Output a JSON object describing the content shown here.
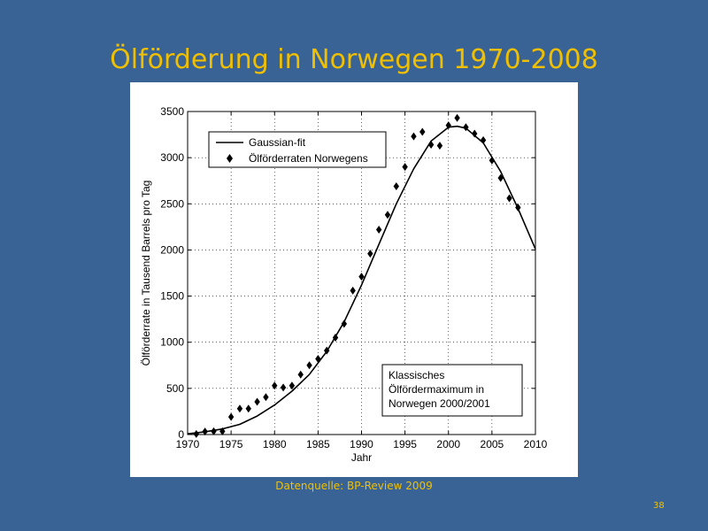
{
  "slide": {
    "title": "Ölförderung in Norwegen 1970-2008",
    "source": "Datenquelle: BP-Review 2009",
    "page_number": "38"
  },
  "chart_data": {
    "type": "scatter",
    "title": "",
    "xlabel": "Jahr",
    "ylabel": "Ölförderrate in Tausend Barrels pro Tag",
    "xlim": [
      1970,
      2010
    ],
    "ylim": [
      0,
      3500
    ],
    "xticks": [
      1970,
      1975,
      1980,
      1985,
      1990,
      1995,
      2000,
      2005,
      2010
    ],
    "yticks": [
      0,
      500,
      1000,
      1500,
      2000,
      2500,
      3000,
      3500
    ],
    "grid": true,
    "legend_position": "top-left",
    "series": [
      {
        "name": "Gaussian-fit",
        "kind": "line",
        "color": "#000000",
        "x": [
          1970,
          1972,
          1974,
          1976,
          1978,
          1980,
          1982,
          1984,
          1986,
          1988,
          1990,
          1992,
          1994,
          1996,
          1998,
          2000,
          2001,
          2002,
          2004,
          2006,
          2008,
          2010
        ],
        "y": [
          8,
          30,
          60,
          110,
          200,
          320,
          470,
          650,
          900,
          1220,
          1620,
          2060,
          2500,
          2880,
          3180,
          3330,
          3340,
          3320,
          3160,
          2850,
          2450,
          2010
        ]
      },
      {
        "name": "Ölförderraten Norwegens",
        "kind": "scatter",
        "marker": "diamond",
        "color": "#000000",
        "x": [
          1971,
          1972,
          1973,
          1974,
          1975,
          1976,
          1977,
          1978,
          1979,
          1980,
          1981,
          1982,
          1983,
          1984,
          1985,
          1986,
          1987,
          1988,
          1989,
          1990,
          1991,
          1992,
          1993,
          1994,
          1995,
          1996,
          1997,
          1998,
          1999,
          2000,
          2001,
          2002,
          2003,
          2004,
          2005,
          2006,
          2007,
          2008
        ],
        "y": [
          6,
          32,
          35,
          35,
          190,
          280,
          280,
          355,
          405,
          530,
          510,
          530,
          650,
          750,
          820,
          910,
          1050,
          1200,
          1560,
          1710,
          1960,
          2220,
          2380,
          2690,
          2900,
          3230,
          3280,
          3140,
          3130,
          3350,
          3430,
          3330,
          3260,
          3190,
          2970,
          2780,
          2560,
          2460
        ]
      }
    ],
    "annotation": {
      "lines": [
        "Klassisches",
        "Ölfördermaximum in",
        "Norwegen 2000/2001"
      ],
      "position": "bottom-right"
    }
  }
}
